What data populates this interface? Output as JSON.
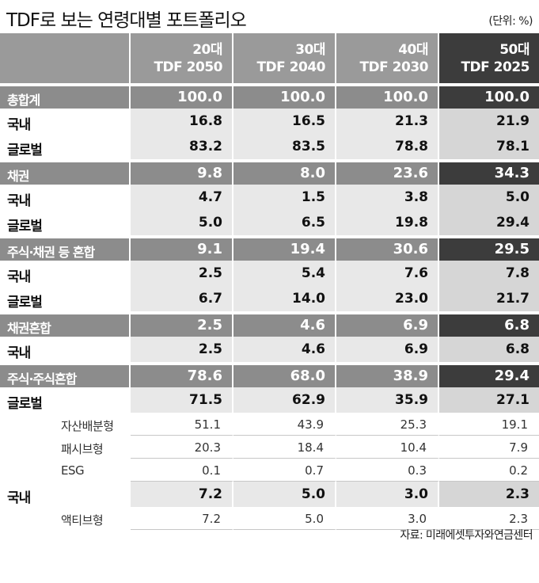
{
  "title": "TDF로 보는 연령대별 포트폴리오",
  "unit": "(단위: %)",
  "columns": [
    {
      "age": "20대",
      "fund": "TDF 2050"
    },
    {
      "age": "30대",
      "fund": "TDF 2040"
    },
    {
      "age": "40대",
      "fund": "TDF 2030"
    },
    {
      "age": "50대",
      "fund": "TDF 2025"
    }
  ],
  "rows": [
    {
      "type": "sum",
      "label": "총합계",
      "values": [
        "100.0",
        "100.0",
        "100.0",
        "100.0"
      ]
    },
    {
      "type": "det",
      "label": "국내",
      "values": [
        "16.8",
        "16.5",
        "21.3",
        "21.9"
      ]
    },
    {
      "type": "det",
      "label": "글로벌",
      "values": [
        "83.2",
        "83.5",
        "78.8",
        "78.1"
      ]
    },
    {
      "type": "sum",
      "label": "채권",
      "values": [
        "9.8",
        "8.0",
        "23.6",
        "34.3"
      ]
    },
    {
      "type": "det",
      "label": "국내",
      "values": [
        "4.7",
        "1.5",
        "3.8",
        "5.0"
      ]
    },
    {
      "type": "det",
      "label": "글로벌",
      "values": [
        "5.0",
        "6.5",
        "19.8",
        "29.4"
      ]
    },
    {
      "type": "sum",
      "label": "주식·채권 등 혼합",
      "values": [
        "9.1",
        "19.4",
        "30.6",
        "29.5"
      ]
    },
    {
      "type": "det",
      "label": "국내",
      "values": [
        "2.5",
        "5.4",
        "7.6",
        "7.8"
      ]
    },
    {
      "type": "det",
      "label": "글로벌",
      "values": [
        "6.7",
        "14.0",
        "23.0",
        "21.7"
      ]
    },
    {
      "type": "sum",
      "label": "채권혼합",
      "values": [
        "2.5",
        "4.6",
        "6.9",
        "6.8"
      ]
    },
    {
      "type": "det",
      "label": "국내",
      "values": [
        "2.5",
        "4.6",
        "6.9",
        "6.8"
      ]
    },
    {
      "type": "sum",
      "label": "주식·주식혼합",
      "values": [
        "78.6",
        "68.0",
        "38.9",
        "29.4"
      ]
    },
    {
      "type": "det",
      "label": "글로벌",
      "values": [
        "71.5",
        "62.9",
        "35.9",
        "27.1"
      ]
    },
    {
      "type": "sub",
      "label": "자산배분형",
      "values": [
        "51.1",
        "43.9",
        "25.3",
        "19.1"
      ]
    },
    {
      "type": "sub",
      "label": "패시브형",
      "values": [
        "20.3",
        "18.4",
        "10.4",
        "7.9"
      ]
    },
    {
      "type": "sub",
      "label": "ESG",
      "values": [
        "0.1",
        "0.7",
        "0.3",
        "0.2"
      ]
    },
    {
      "type": "det",
      "label": "국내",
      "values": [
        "7.2",
        "5.0",
        "3.0",
        "2.3"
      ]
    },
    {
      "type": "sub",
      "label": "액티브형",
      "values": [
        "7.2",
        "5.0",
        "3.0",
        "2.3"
      ]
    }
  ],
  "source": "자료: 미래에셋투자와연금센터"
}
